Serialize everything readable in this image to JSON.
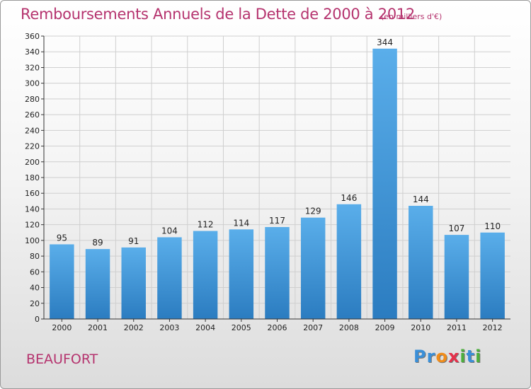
{
  "header": {
    "title": "Remboursements Annuels de la Dette de 2000 à 2012",
    "subtitle": "(en milliers d'€)"
  },
  "footer": {
    "commune": "BEAUFORT",
    "logo_letters": [
      {
        "ch": "P",
        "color": "#3a8fd8"
      },
      {
        "ch": "r",
        "color": "#3a8fd8"
      },
      {
        "ch": "o",
        "color": "#f08c1a"
      },
      {
        "ch": "x",
        "color": "#e5304a"
      },
      {
        "ch": "i",
        "color": "#4caf3c"
      },
      {
        "ch": "t",
        "color": "#3a8fd8"
      },
      {
        "ch": "i",
        "color": "#4caf3c"
      }
    ]
  },
  "colors": {
    "title": "#b5336e",
    "bar_top": "#5aaeea",
    "bar_bottom": "#2b7cc0",
    "grid": "#cfcfcf"
  },
  "chart_data": {
    "type": "bar",
    "title": "Remboursements Annuels de la Dette de 2000 à 2012",
    "subtitle": "(en milliers d'€)",
    "categories": [
      "2000",
      "2001",
      "2002",
      "2003",
      "2004",
      "2005",
      "2006",
      "2007",
      "2008",
      "2009",
      "2010",
      "2011",
      "2012"
    ],
    "values": [
      95,
      89,
      91,
      104,
      112,
      114,
      117,
      129,
      146,
      344,
      144,
      107,
      110
    ],
    "ylim": [
      0,
      360
    ],
    "ytick_step": 20,
    "grid": true,
    "data_labels": true
  }
}
